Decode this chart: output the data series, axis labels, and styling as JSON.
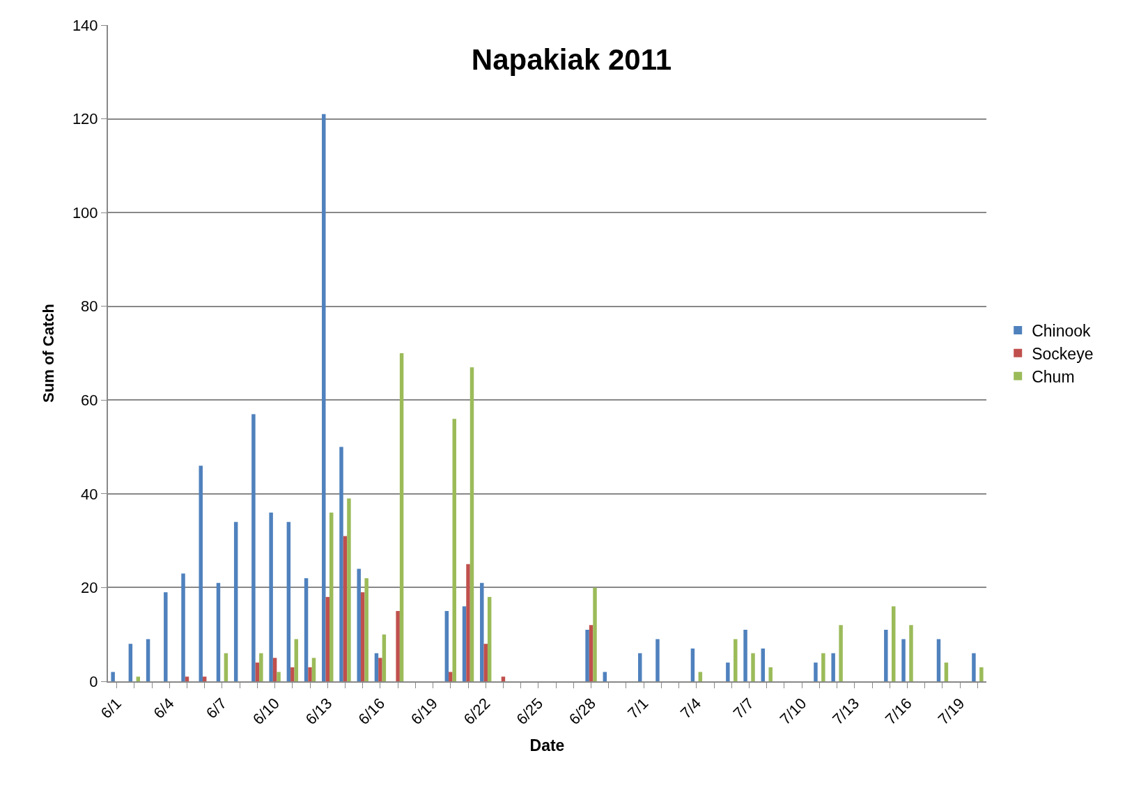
{
  "chart_data": {
    "type": "bar",
    "title": "Napakiak 2011",
    "xlabel": "Date",
    "ylabel": "Sum of Catch",
    "categories": [
      "6/1",
      null,
      null,
      "6/4",
      null,
      null,
      "6/7",
      null,
      null,
      "6/10",
      null,
      null,
      "6/13",
      null,
      null,
      "6/16",
      null,
      null,
      "6/19",
      null,
      null,
      "6/22",
      null,
      null,
      "6/25",
      null,
      null,
      "6/28",
      null,
      null,
      "7/1",
      null,
      null,
      "7/4",
      null,
      null,
      "7/7",
      null,
      null,
      "7/10",
      null,
      null,
      "7/13",
      null,
      null,
      "7/16",
      null,
      null,
      "7/19",
      null
    ],
    "series": [
      {
        "name": "Chinook",
        "color": "#4f81bd",
        "values": [
          2,
          8,
          9,
          19,
          23,
          46,
          21,
          34,
          57,
          36,
          34,
          22,
          121,
          50,
          24,
          6,
          0,
          0,
          0,
          15,
          16,
          21,
          0,
          0,
          0,
          0,
          0,
          11,
          2,
          0,
          6,
          9,
          0,
          7,
          0,
          4,
          11,
          7,
          0,
          0,
          4,
          6,
          0,
          0,
          11,
          9,
          0,
          9,
          0,
          6
        ]
      },
      {
        "name": "Sockeye",
        "color": "#c0504d",
        "values": [
          0,
          0,
          0,
          0,
          1,
          1,
          0,
          0,
          4,
          5,
          3,
          3,
          18,
          31,
          19,
          5,
          15,
          0,
          0,
          2,
          25,
          8,
          1,
          0,
          0,
          0,
          0,
          12,
          0,
          0,
          0,
          0,
          0,
          0,
          0,
          0,
          0,
          0,
          0,
          0,
          0,
          0,
          0,
          0,
          0,
          0,
          0,
          0,
          0,
          0
        ]
      },
      {
        "name": "Chum",
        "color": "#9bbb59",
        "values": [
          0,
          1,
          0,
          0,
          0,
          0,
          6,
          0,
          6,
          2,
          9,
          5,
          36,
          39,
          22,
          10,
          70,
          0,
          0,
          56,
          67,
          18,
          0,
          0,
          0,
          0,
          0,
          20,
          0,
          0,
          0,
          0,
          0,
          2,
          0,
          9,
          6,
          3,
          0,
          0,
          6,
          12,
          0,
          0,
          16,
          12,
          0,
          4,
          0,
          3
        ]
      }
    ],
    "ylim": [
      0,
      140
    ],
    "yticks": [
      0,
      20,
      40,
      60,
      80,
      100,
      120,
      140
    ],
    "grid": "y",
    "legend": "right"
  }
}
